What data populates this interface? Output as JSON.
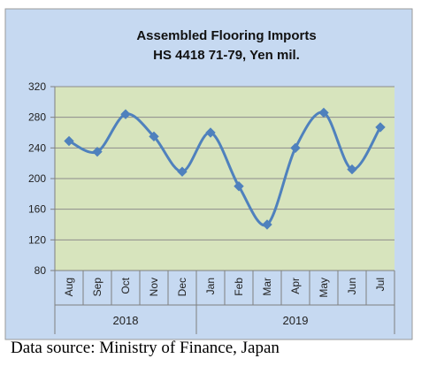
{
  "chart_data": {
    "type": "line",
    "title_line1": "Assembled Flooring Imports",
    "title_line2": "HS 4418 71-79, Yen mil.",
    "categories": [
      "Aug",
      "Sep",
      "Oct",
      "Nov",
      "Dec",
      "Jan",
      "Feb",
      "Mar",
      "Apr",
      "May",
      "Jun",
      "Jul"
    ],
    "groups": [
      {
        "label": "2018",
        "span": [
          0,
          4
        ]
      },
      {
        "label": "2019",
        "span": [
          5,
          11
        ]
      }
    ],
    "values": [
      249,
      235,
      284,
      255,
      209,
      260,
      190,
      140,
      240,
      286,
      212,
      267
    ],
    "ylim": [
      80,
      320
    ],
    "yticks": [
      80,
      120,
      160,
      200,
      240,
      280,
      320
    ],
    "grid": "horizontal",
    "legend": "none",
    "colors": {
      "outer_background": "#c6d9f1",
      "plot_background": "#d7e4bd",
      "line": "#4f81bd",
      "gridline": "#8c8c8c"
    }
  },
  "source_note": "Data source: Ministry of Finance, Japan"
}
